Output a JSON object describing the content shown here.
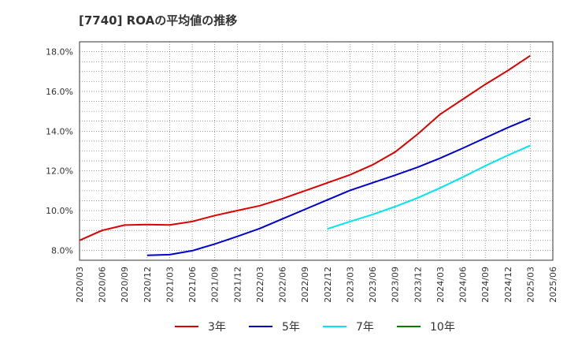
{
  "chart_data": {
    "type": "line",
    "title": "[7740]  ROAの平均値の推移",
    "xlabel": "",
    "ylabel": "",
    "ylim": [
      7.5,
      18.5
    ],
    "yticks": [
      8.0,
      10.0,
      12.0,
      14.0,
      16.0,
      18.0
    ],
    "ytick_labels": [
      "8.0%",
      "10.0%",
      "12.0%",
      "14.0%",
      "16.0%",
      "18.0%"
    ],
    "x": [
      "2020/03",
      "2020/06",
      "2020/09",
      "2020/12",
      "2021/03",
      "2021/06",
      "2021/09",
      "2021/12",
      "2022/03",
      "2022/06",
      "2022/09",
      "2022/12",
      "2023/03",
      "2023/06",
      "2023/09",
      "2023/12",
      "2024/03",
      "2024/06",
      "2024/09",
      "2024/12",
      "2025/03",
      "2025/06"
    ],
    "grid": true,
    "legend_position": "bottom",
    "series": [
      {
        "name": "3年",
        "color": "#dd0000",
        "values": [
          8.5,
          9.0,
          9.27,
          9.3,
          9.28,
          9.45,
          9.75,
          10.0,
          10.25,
          10.6,
          11.0,
          11.4,
          11.8,
          12.3,
          12.95,
          13.85,
          14.85,
          15.6,
          16.35,
          17.05,
          17.8,
          null
        ]
      },
      {
        "name": "5年",
        "color": "#0000cc",
        "values": [
          null,
          null,
          null,
          7.75,
          7.78,
          7.98,
          8.32,
          8.7,
          9.1,
          9.58,
          10.06,
          10.54,
          11.02,
          11.4,
          11.78,
          12.18,
          12.64,
          13.14,
          13.66,
          14.18,
          14.65,
          null
        ]
      },
      {
        "name": "7年",
        "color": "#00e5ee",
        "values": [
          null,
          null,
          null,
          null,
          null,
          null,
          null,
          null,
          null,
          null,
          null,
          9.08,
          9.45,
          9.8,
          10.2,
          10.64,
          11.14,
          11.68,
          12.25,
          12.78,
          13.28,
          null
        ]
      },
      {
        "name": "10年",
        "color": "#008000",
        "values": [
          null,
          null,
          null,
          null,
          null,
          null,
          null,
          null,
          null,
          null,
          null,
          null,
          null,
          null,
          null,
          null,
          null,
          null,
          null,
          null,
          null,
          null
        ]
      }
    ]
  }
}
